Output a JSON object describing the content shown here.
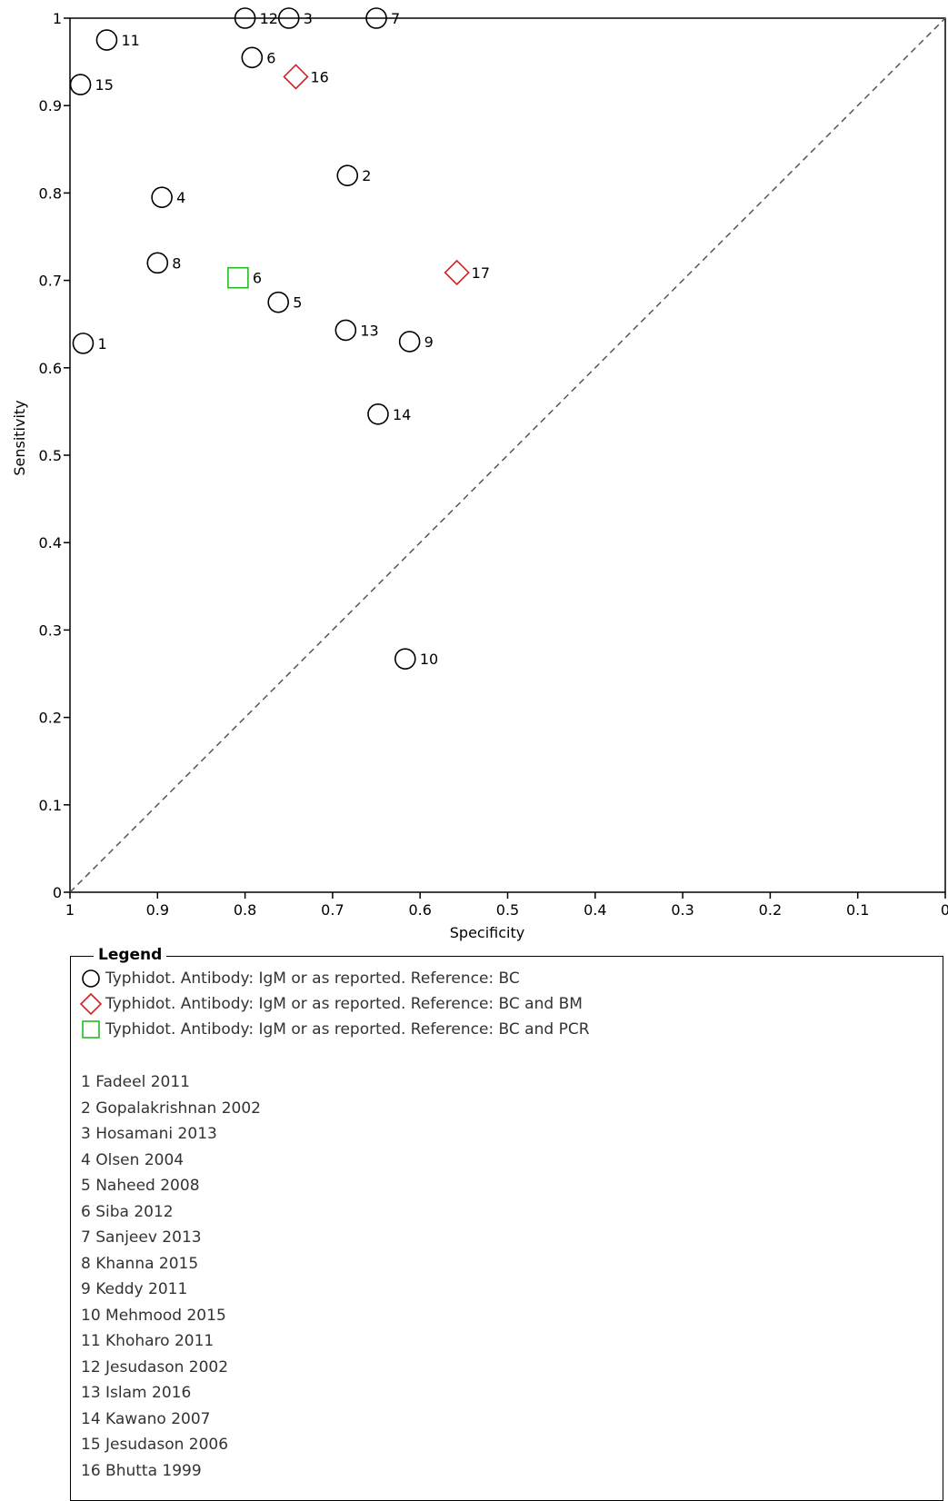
{
  "chart_data": {
    "type": "scatter",
    "xlabel": "Specificity",
    "ylabel": "Sensitivity",
    "xlim": [
      1,
      0
    ],
    "ylim": [
      0,
      1
    ],
    "x_ticks": [
      "1",
      "0.9",
      "0.8",
      "0.7",
      "0.6",
      "0.5",
      "0.4",
      "0.3",
      "0.2",
      "0.1",
      "0"
    ],
    "x_tick_values": [
      1,
      0.9,
      0.8,
      0.7,
      0.6,
      0.5,
      0.4,
      0.3,
      0.2,
      0.1,
      0
    ],
    "y_ticks": [
      "0",
      "0.1",
      "0.2",
      "0.3",
      "0.4",
      "0.5",
      "0.6",
      "0.7",
      "0.8",
      "0.9",
      "1"
    ],
    "y_tick_values": [
      0,
      0.1,
      0.2,
      0.3,
      0.4,
      0.5,
      0.6,
      0.7,
      0.8,
      0.9,
      1
    ],
    "diagonal_line": true,
    "series": [
      {
        "name": "Typhidot. Antibody: IgM or as reported. Reference: BC",
        "marker": "circle",
        "color": "#000000",
        "points": [
          {
            "label": "1",
            "x": 0.985,
            "y": 0.628
          },
          {
            "label": "2",
            "x": 0.683,
            "y": 0.82
          },
          {
            "label": "3",
            "x": 0.75,
            "y": 1.0
          },
          {
            "label": "4",
            "x": 0.895,
            "y": 0.795
          },
          {
            "label": "5",
            "x": 0.762,
            "y": 0.675
          },
          {
            "label": "6",
            "x": 0.792,
            "y": 0.955
          },
          {
            "label": "7",
            "x": 0.65,
            "y": 1.0
          },
          {
            "label": "8",
            "x": 0.9,
            "y": 0.72
          },
          {
            "label": "9",
            "x": 0.612,
            "y": 0.63
          },
          {
            "label": "10",
            "x": 0.617,
            "y": 0.267
          },
          {
            "label": "11",
            "x": 0.958,
            "y": 0.975
          },
          {
            "label": "12",
            "x": 0.8,
            "y": 1.0
          },
          {
            "label": "13",
            "x": 0.685,
            "y": 0.643
          },
          {
            "label": "14",
            "x": 0.648,
            "y": 0.547
          },
          {
            "label": "15",
            "x": 0.988,
            "y": 0.924
          }
        ]
      },
      {
        "name": "Typhidot. Antibody: IgM or as reported. Reference: BC and BM",
        "marker": "diamond",
        "color": "#d42020",
        "points": [
          {
            "label": "16",
            "x": 0.742,
            "y": 0.933
          },
          {
            "label": "17",
            "x": 0.558,
            "y": 0.709
          }
        ]
      },
      {
        "name": "Typhidot. Antibody: IgM or as reported. Reference: BC and PCR",
        "marker": "square",
        "color": "#22bb22",
        "points": [
          {
            "label": "6",
            "x": 0.808,
            "y": 0.703
          }
        ]
      }
    ],
    "legend": {
      "title": "Legend",
      "studies": [
        "1 Fadeel 2011",
        "2 Gopalakrishnan 2002",
        "3 Hosamani 2013",
        "4 Olsen 2004",
        "5 Naheed 2008",
        "6 Siba 2012",
        "7 Sanjeev 2013",
        "8 Khanna 2015",
        "9 Keddy 2011",
        "10 Mehmood 2015",
        "11 Khoharo 2011",
        "12 Jesudason 2002",
        "13 Islam 2016",
        "14 Kawano 2007",
        "15 Jesudason 2006",
        "16 Bhutta 1999"
      ]
    }
  }
}
